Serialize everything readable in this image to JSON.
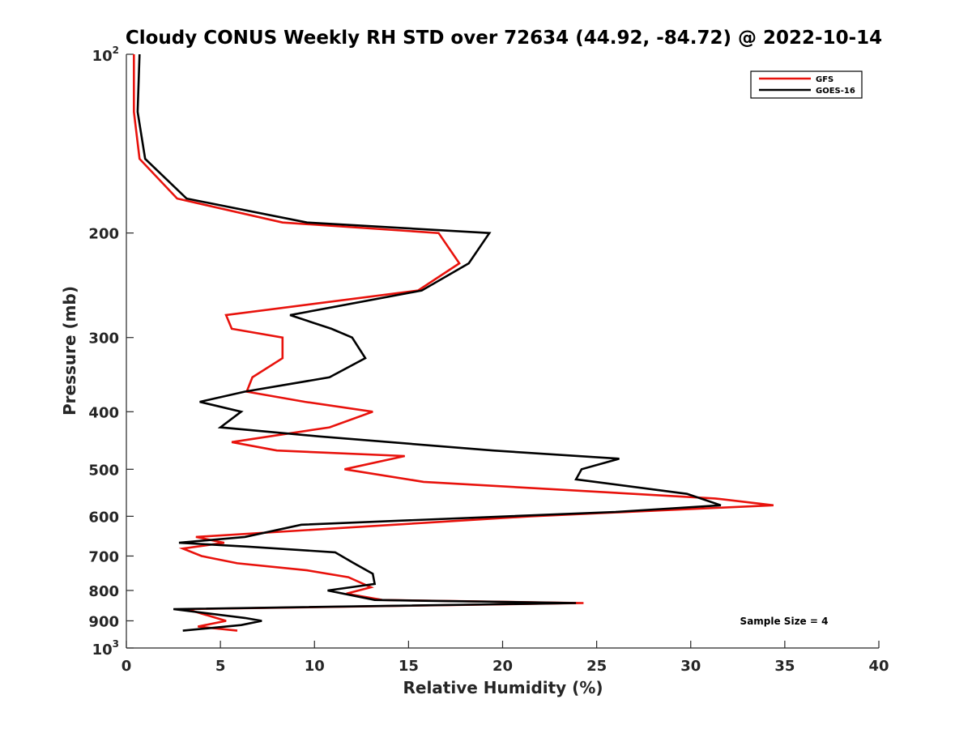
{
  "chart_data": {
    "type": "line",
    "title": "Cloudy CONUS Weekly RH STD over 72634 (44.92, -84.72) @ 2022-10-14",
    "xlabel": "Relative Humidity (%)",
    "ylabel": "Pressure (mb)",
    "xlim": [
      0,
      40
    ],
    "ylim": [
      100,
      1000
    ],
    "y_scale": "log",
    "y_reversed": true,
    "grid": false,
    "legend_position": "top-right",
    "x_ticks": [
      "0",
      "5",
      "10",
      "15",
      "20",
      "25",
      "30",
      "35",
      "40"
    ],
    "y_ticks": [
      {
        "value": 100,
        "base": "10",
        "exp": "2"
      },
      {
        "value": 200,
        "label": "200"
      },
      {
        "value": 300,
        "label": "300"
      },
      {
        "value": 400,
        "label": "400"
      },
      {
        "value": 500,
        "label": "500"
      },
      {
        "value": 600,
        "label": "600"
      },
      {
        "value": 700,
        "label": "700"
      },
      {
        "value": 800,
        "label": "800"
      },
      {
        "value": 900,
        "label": "900"
      },
      {
        "value": 1000,
        "base": "10",
        "exp": "3"
      }
    ],
    "annotation": "Sample Size = 4",
    "series": [
      {
        "name": "GFS",
        "color": "#e8120c",
        "points": [
          [
            0.4,
            100
          ],
          [
            0.4,
            125
          ],
          [
            0.7,
            150
          ],
          [
            2.7,
            175
          ],
          [
            8.3,
            192
          ],
          [
            16.6,
            200
          ],
          [
            17.7,
            225
          ],
          [
            15.5,
            250
          ],
          [
            5.3,
            275
          ],
          [
            5.6,
            290
          ],
          [
            8.3,
            300
          ],
          [
            8.3,
            325
          ],
          [
            6.7,
            350
          ],
          [
            6.4,
            370
          ],
          [
            9.5,
            385
          ],
          [
            13.1,
            400
          ],
          [
            10.8,
            425
          ],
          [
            5.6,
            450
          ],
          [
            8.0,
            465
          ],
          [
            14.8,
            475
          ],
          [
            11.6,
            500
          ],
          [
            15.8,
            525
          ],
          [
            31.3,
            560
          ],
          [
            34.4,
            575
          ],
          [
            21.5,
            600
          ],
          [
            3.7,
            650
          ],
          [
            5.2,
            665
          ],
          [
            3.0,
            680
          ],
          [
            4.0,
            700
          ],
          [
            5.9,
            720
          ],
          [
            9.6,
            740
          ],
          [
            11.8,
            760
          ],
          [
            13.0,
            790
          ],
          [
            11.7,
            810
          ],
          [
            13.6,
            830
          ],
          [
            24.3,
            840
          ],
          [
            3.2,
            860
          ],
          [
            5.3,
            900
          ],
          [
            3.8,
            920
          ],
          [
            5.9,
            935
          ]
        ]
      },
      {
        "name": "GOES-16",
        "color": "#000000",
        "points": [
          [
            0.7,
            100
          ],
          [
            0.6,
            125
          ],
          [
            1.0,
            150
          ],
          [
            3.2,
            175
          ],
          [
            9.6,
            192
          ],
          [
            19.3,
            200
          ],
          [
            18.2,
            225
          ],
          [
            15.7,
            250
          ],
          [
            8.7,
            275
          ],
          [
            10.9,
            290
          ],
          [
            12.0,
            300
          ],
          [
            12.7,
            325
          ],
          [
            10.8,
            350
          ],
          [
            6.3,
            370
          ],
          [
            3.9,
            385
          ],
          [
            6.1,
            400
          ],
          [
            5.0,
            425
          ],
          [
            10.2,
            440
          ],
          [
            19.5,
            465
          ],
          [
            26.2,
            480
          ],
          [
            24.2,
            500
          ],
          [
            23.9,
            520
          ],
          [
            29.8,
            550
          ],
          [
            31.6,
            575
          ],
          [
            26.0,
            590
          ],
          [
            9.3,
            620
          ],
          [
            6.3,
            650
          ],
          [
            2.8,
            665
          ],
          [
            6.5,
            675
          ],
          [
            11.1,
            690
          ],
          [
            12.1,
            720
          ],
          [
            13.1,
            750
          ],
          [
            13.2,
            780
          ],
          [
            10.7,
            800
          ],
          [
            13.2,
            830
          ],
          [
            23.9,
            840
          ],
          [
            2.5,
            860
          ],
          [
            6.3,
            890
          ],
          [
            7.2,
            900
          ],
          [
            6.1,
            915
          ],
          [
            3.0,
            935
          ]
        ]
      }
    ]
  }
}
